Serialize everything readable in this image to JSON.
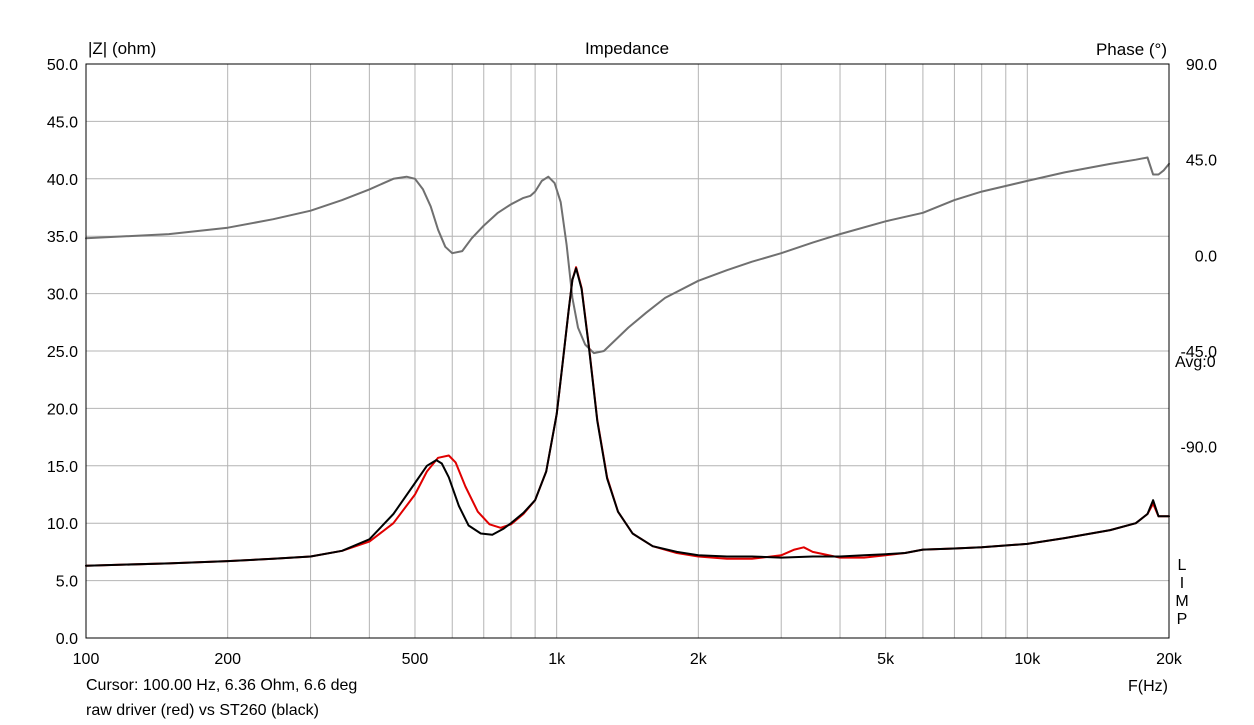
{
  "chart_data": {
    "type": "line",
    "title": "Impedance",
    "ylabel_left": "|Z| (ohm)",
    "ylabel_right": "Phase (°)",
    "xlabel": "F(Hz)",
    "x_scale": "log",
    "xlim": [
      100,
      20000
    ],
    "ylim_left": [
      0,
      50
    ],
    "ylim_right": [
      -180,
      90
    ],
    "grid": true,
    "x_ticks": [
      {
        "value": 100,
        "label": "100"
      },
      {
        "value": 200,
        "label": "200"
      },
      {
        "value": 500,
        "label": "500"
      },
      {
        "value": 1000,
        "label": "1k"
      },
      {
        "value": 2000,
        "label": "2k"
      },
      {
        "value": 5000,
        "label": "5k"
      },
      {
        "value": 10000,
        "label": "10k"
      },
      {
        "value": 20000,
        "label": "20k"
      }
    ],
    "y_left_ticks": [
      "0.0",
      "5.0",
      "10.0",
      "15.0",
      "20.0",
      "25.0",
      "30.0",
      "35.0",
      "40.0",
      "45.0",
      "50.0"
    ],
    "y_right_ticks": [
      {
        "value": 90,
        "label": "90.0"
      },
      {
        "value": 45,
        "label": "45.0"
      },
      {
        "value": 0,
        "label": "0.0"
      },
      {
        "value": -45,
        "label": "-45.0"
      },
      {
        "value": -90,
        "label": "-90.0"
      }
    ],
    "right_annotation": "Avg:0",
    "side_letters": [
      "L",
      "I",
      "M",
      "P"
    ],
    "series": [
      {
        "color": "#e00000",
        "axis": "left",
        "x": [
          100,
          150,
          200,
          250,
          300,
          350,
          400,
          450,
          500,
          530,
          560,
          590,
          610,
          640,
          680,
          720,
          760,
          800,
          850,
          900,
          950,
          1000,
          1030,
          1060,
          1080,
          1100,
          1130,
          1170,
          1220,
          1280,
          1350,
          1450,
          1600,
          1800,
          2000,
          2300,
          2600,
          3000,
          3200,
          3350,
          3500,
          4000,
          4500,
          5000,
          5500,
          6000,
          7000,
          8000,
          10000,
          12000,
          15000,
          17000,
          18000,
          18500,
          19000,
          20000
        ],
        "y": [
          6.3,
          6.5,
          6.7,
          6.9,
          7.1,
          7.6,
          8.4,
          10.0,
          12.5,
          14.5,
          15.7,
          15.9,
          15.3,
          13.2,
          11.0,
          9.9,
          9.6,
          9.9,
          10.8,
          12.0,
          14.5,
          19.5,
          24.0,
          28.5,
          31.2,
          32.3,
          30.5,
          25.5,
          19.0,
          14.0,
          11.0,
          9.1,
          8.0,
          7.4,
          7.1,
          6.9,
          6.9,
          7.2,
          7.7,
          7.9,
          7.5,
          7.0,
          7.0,
          7.2,
          7.4,
          7.7,
          7.8,
          7.9,
          8.2,
          8.7,
          9.4,
          10.0,
          10.8,
          11.7,
          10.6,
          10.6
        ]
      },
      {
        "color": "#000000",
        "axis": "left",
        "x": [
          100,
          150,
          200,
          250,
          300,
          350,
          400,
          450,
          500,
          530,
          555,
          570,
          590,
          620,
          650,
          690,
          730,
          770,
          800,
          850,
          900,
          950,
          1000,
          1030,
          1060,
          1080,
          1100,
          1130,
          1170,
          1220,
          1280,
          1350,
          1450,
          1600,
          1800,
          2000,
          2300,
          2600,
          3000,
          3500,
          4000,
          4500,
          5000,
          5500,
          6000,
          7000,
          8000,
          10000,
          12000,
          15000,
          17000,
          18000,
          18500,
          19000,
          20000
        ],
        "y": [
          6.3,
          6.5,
          6.7,
          6.9,
          7.1,
          7.6,
          8.6,
          10.8,
          13.5,
          15.0,
          15.5,
          15.2,
          14.0,
          11.5,
          9.8,
          9.1,
          9.0,
          9.5,
          10.0,
          10.9,
          12.0,
          14.5,
          19.5,
          24.0,
          28.5,
          31.2,
          32.2,
          30.4,
          25.4,
          18.9,
          13.9,
          11.0,
          9.1,
          8.0,
          7.5,
          7.2,
          7.1,
          7.1,
          7.0,
          7.1,
          7.1,
          7.2,
          7.3,
          7.4,
          7.7,
          7.8,
          7.9,
          8.2,
          8.7,
          9.4,
          10.0,
          10.8,
          12.0,
          10.6,
          10.6
        ]
      },
      {
        "color": "#707070",
        "axis": "right",
        "x": [
          100,
          150,
          200,
          250,
          300,
          350,
          400,
          450,
          480,
          500,
          520,
          540,
          560,
          580,
          600,
          630,
          660,
          700,
          750,
          800,
          850,
          880,
          900,
          930,
          960,
          990,
          1020,
          1050,
          1080,
          1110,
          1150,
          1200,
          1260,
          1330,
          1420,
          1550,
          1700,
          2000,
          2300,
          2600,
          3000,
          3500,
          4000,
          5000,
          6000,
          7000,
          8000,
          10000,
          12000,
          15000,
          17000,
          18000,
          18500,
          19000,
          19500,
          20000
        ],
        "y": [
          8,
          10,
          13,
          17,
          21,
          26,
          31,
          36,
          37,
          36,
          31,
          23,
          12,
          4,
          1,
          2,
          8,
          14,
          20,
          24,
          27,
          28,
          30,
          35,
          37,
          34,
          25,
          5,
          -20,
          -34,
          -42,
          -46,
          -45,
          -40,
          -34,
          -27,
          -20,
          -12,
          -7,
          -3,
          1,
          6,
          10,
          16,
          20,
          26,
          30,
          35,
          39,
          43,
          45,
          46,
          38,
          38,
          40,
          43
        ]
      }
    ],
    "cursor_text": "Cursor: 100.00 Hz, 6.36 Ohm, 6.6 deg",
    "legend_text": "raw driver (red) vs ST260 (black)"
  }
}
